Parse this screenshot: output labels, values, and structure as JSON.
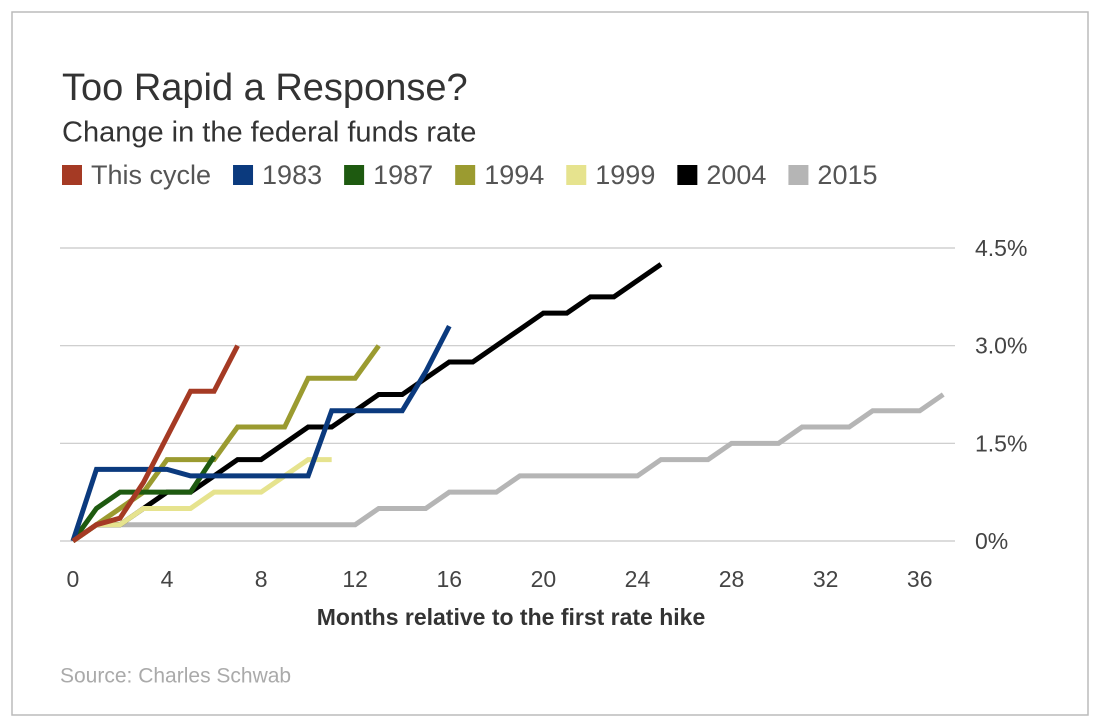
{
  "chart_data": {
    "type": "line",
    "title": "Too Rapid a Response?",
    "subtitle": "Change in the federal funds rate",
    "x_label": "Months relative to the first rate hike",
    "source": "Source: Charles Schwab",
    "x": [
      0,
      1,
      2,
      3,
      4,
      5,
      6,
      7,
      8,
      9,
      10,
      11,
      12,
      13,
      14,
      15,
      16,
      17,
      18,
      19,
      20,
      21,
      22,
      23,
      24,
      25,
      26,
      27,
      28,
      29,
      30,
      31,
      32,
      33,
      34,
      35,
      36,
      37
    ],
    "xlim": [
      -0.55,
      37.5
    ],
    "xticks": [
      0,
      4,
      8,
      12,
      16,
      20,
      24,
      28,
      32,
      36
    ],
    "ylim": [
      0,
      4.5
    ],
    "yticks": [
      {
        "value": 0,
        "label": "0%"
      },
      {
        "value": 1.5,
        "label": "1.5%"
      },
      {
        "value": 3.0,
        "label": "3.0%"
      },
      {
        "value": 4.5,
        "label": "4.5%"
      }
    ],
    "grid": true,
    "legend": "top",
    "series": [
      {
        "name": "This cycle",
        "color": "#a53a24",
        "values": [
          0,
          0.25,
          0.35,
          0.9,
          1.6,
          2.3,
          2.3,
          3.0,
          null,
          null,
          null,
          null,
          null,
          null,
          null,
          null,
          null,
          null,
          null,
          null,
          null,
          null,
          null,
          null,
          null,
          null,
          null,
          null,
          null,
          null,
          null,
          null,
          null,
          null,
          null,
          null,
          null,
          null
        ]
      },
      {
        "name": "1983",
        "color": "#0b3a7e",
        "values": [
          0,
          1.1,
          1.1,
          1.1,
          1.1,
          1.0,
          1.0,
          1.0,
          1.0,
          1.0,
          1.0,
          2.0,
          2.0,
          2.0,
          2.0,
          2.6,
          3.3,
          null,
          null,
          null,
          null,
          null,
          null,
          null,
          null,
          null,
          null,
          null,
          null,
          null,
          null,
          null,
          null,
          null,
          null,
          null,
          null,
          null
        ]
      },
      {
        "name": "1987",
        "color": "#1e5a10",
        "values": [
          0,
          0.5,
          0.75,
          0.75,
          0.75,
          0.75,
          1.3,
          null,
          null,
          null,
          null,
          null,
          null,
          null,
          null,
          null,
          null,
          null,
          null,
          null,
          null,
          null,
          null,
          null,
          null,
          null,
          null,
          null,
          null,
          null,
          null,
          null,
          null,
          null,
          null,
          null,
          null,
          null
        ]
      },
      {
        "name": "1994",
        "color": "#9b9b30",
        "values": [
          0,
          0.25,
          0.5,
          0.75,
          1.25,
          1.25,
          1.25,
          1.75,
          1.75,
          1.75,
          2.5,
          2.5,
          2.5,
          3.0,
          null,
          null,
          null,
          null,
          null,
          null,
          null,
          null,
          null,
          null,
          null,
          null,
          null,
          null,
          null,
          null,
          null,
          null,
          null,
          null,
          null,
          null,
          null,
          null
        ]
      },
      {
        "name": "1999",
        "color": "#e6e38e",
        "values": [
          0,
          0.25,
          0.25,
          0.5,
          0.5,
          0.5,
          0.75,
          0.75,
          0.75,
          1.0,
          1.25,
          1.25,
          null,
          null,
          null,
          null,
          null,
          null,
          null,
          null,
          null,
          null,
          null,
          null,
          null,
          null,
          null,
          null,
          null,
          null,
          null,
          null,
          null,
          null,
          null,
          null,
          null,
          null
        ]
      },
      {
        "name": "2004",
        "color": "#000000",
        "values": [
          0,
          0.25,
          0.25,
          0.5,
          0.75,
          0.75,
          1.0,
          1.25,
          1.25,
          1.5,
          1.75,
          1.75,
          2.0,
          2.25,
          2.25,
          2.5,
          2.75,
          2.75,
          3.0,
          3.25,
          3.5,
          3.5,
          3.75,
          3.75,
          4.0,
          4.25,
          null,
          null,
          null,
          null,
          null,
          null,
          null,
          null,
          null,
          null,
          null,
          null
        ]
      },
      {
        "name": "2015",
        "color": "#b5b5b5",
        "values": [
          0,
          0.25,
          0.25,
          0.25,
          0.25,
          0.25,
          0.25,
          0.25,
          0.25,
          0.25,
          0.25,
          0.25,
          0.25,
          0.5,
          0.5,
          0.5,
          0.75,
          0.75,
          0.75,
          1.0,
          1.0,
          1.0,
          1.0,
          1.0,
          1.0,
          1.25,
          1.25,
          1.25,
          1.5,
          1.5,
          1.5,
          1.75,
          1.75,
          1.75,
          2.0,
          2.0,
          2.0,
          2.25
        ]
      }
    ]
  }
}
